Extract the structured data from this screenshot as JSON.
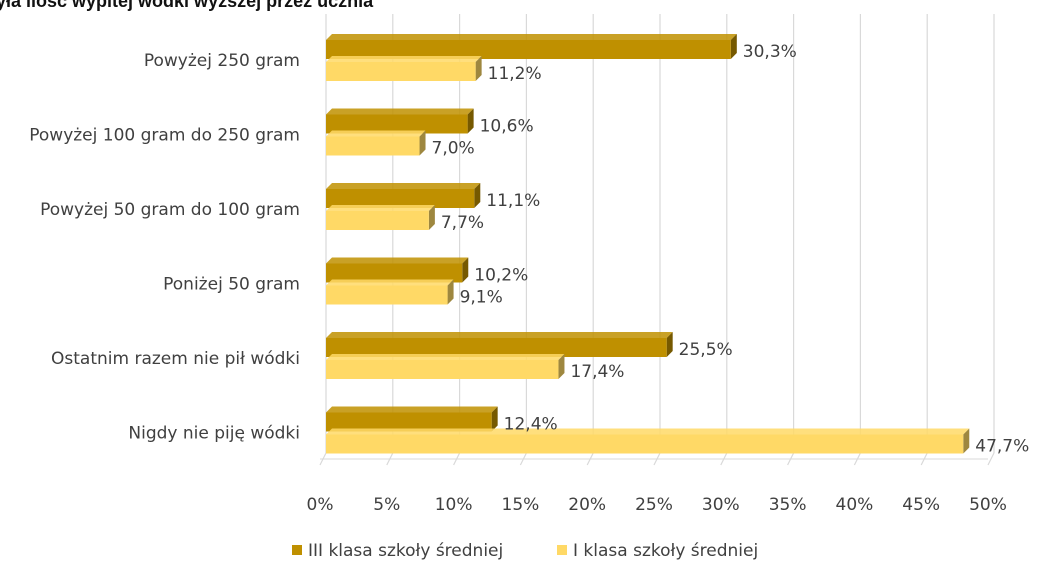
{
  "chart_data": {
    "type": "bar",
    "orientation": "horizontal",
    "style": "3d",
    "title": "yła ilość wypitej wódki wyższej przez ucznia",
    "categories": [
      "Powyżej 250 gram",
      "Powyżej 100 gram do 250 gram",
      "Powyżej 50 gram do 100 gram",
      "Poniżej 50 gram",
      "Ostatnim razem nie pił wódki",
      "Nigdy nie piję wódki"
    ],
    "series": [
      {
        "name": "III klasa szkoły średniej",
        "color": "#BF9000",
        "values": [
          30.3,
          10.6,
          11.1,
          10.2,
          25.5,
          12.4
        ],
        "labels": [
          "30,3%",
          "10,6%",
          "11,1%",
          "10,2%",
          "25,5%",
          "12,4%"
        ]
      },
      {
        "name": "I klasa szkoły średniej",
        "color": "#FFD966",
        "values": [
          11.2,
          7.0,
          7.7,
          9.1,
          17.4,
          47.7
        ],
        "labels": [
          "11,2%",
          "7,0%",
          "7,7%",
          "9,1%",
          "17,4%",
          "47,7%"
        ]
      }
    ],
    "xlim": [
      0,
      50
    ],
    "xticks": [
      "0%",
      "5%",
      "10%",
      "15%",
      "20%",
      "25%",
      "30%",
      "35%",
      "40%",
      "45%",
      "50%"
    ],
    "xlabel": "",
    "ylabel": "",
    "grid": "vertical",
    "legend": "bottom"
  }
}
